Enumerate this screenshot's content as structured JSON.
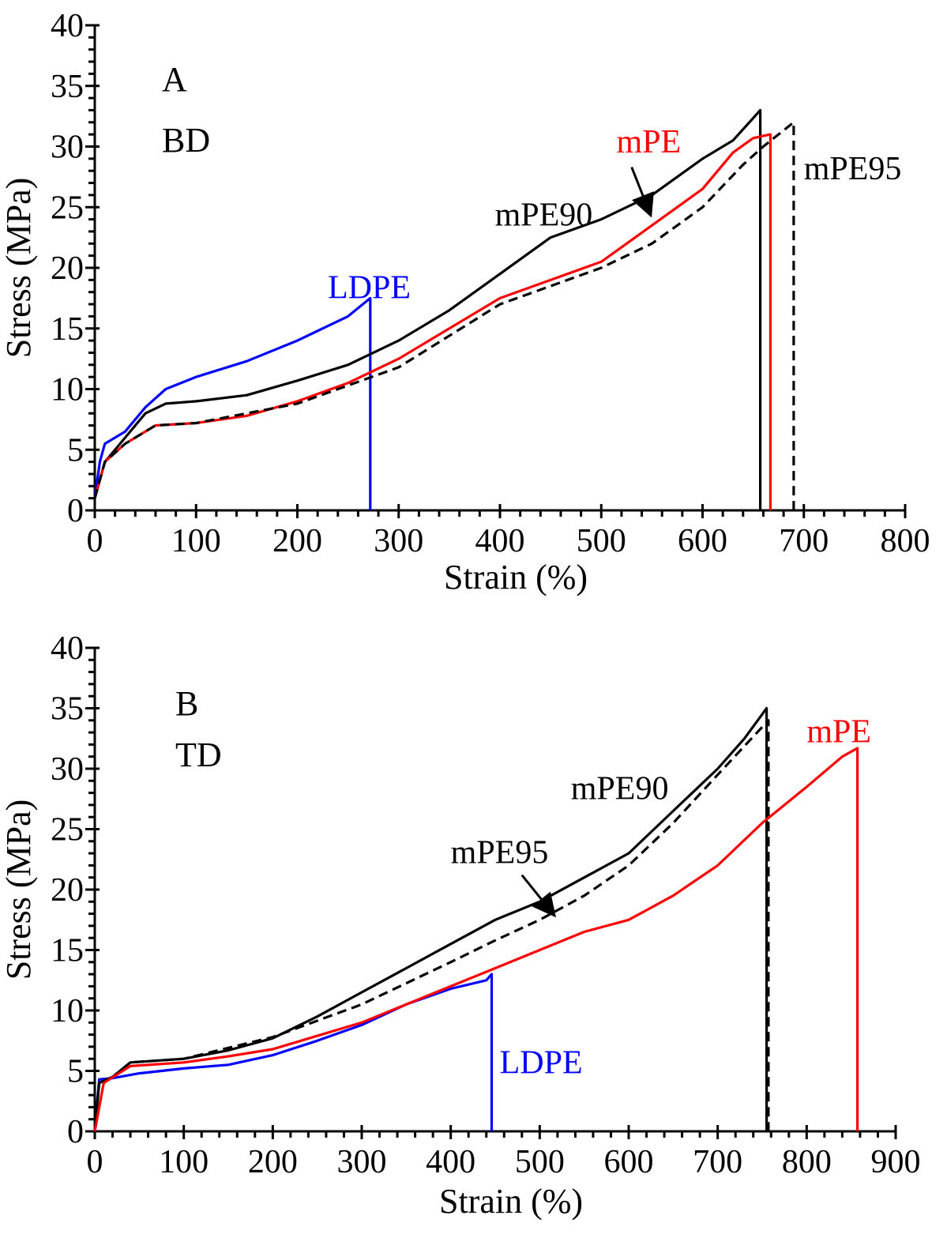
{
  "chart_data": [
    {
      "type": "line",
      "panel": "A",
      "panel_labels": [
        "A",
        "BD"
      ],
      "xlabel": "Strain (%)",
      "ylabel": "Stress (MPa)",
      "xlim": [
        0,
        800
      ],
      "ylim": [
        0,
        40
      ],
      "xticks": [
        0,
        100,
        200,
        300,
        400,
        500,
        600,
        700,
        800
      ],
      "yticks": [
        0,
        5,
        10,
        15,
        20,
        25,
        30,
        35,
        40
      ],
      "grid": false,
      "series": [
        {
          "name": "LDPE",
          "color": "#0000ff",
          "dash": false,
          "label_pos": [
            230,
            17.5
          ],
          "x": [
            0,
            5,
            10,
            30,
            50,
            70,
            100,
            150,
            200,
            250,
            272,
            272
          ],
          "y": [
            1,
            4,
            5.5,
            6.5,
            8.5,
            10,
            11,
            12.3,
            14,
            16,
            17.5,
            0
          ]
        },
        {
          "name": "mPE90",
          "color": "#000000",
          "dash": false,
          "label_pos": [
            395,
            23.5
          ],
          "x": [
            0,
            10,
            30,
            50,
            70,
            100,
            150,
            200,
            250,
            300,
            350,
            400,
            450,
            500,
            550,
            600,
            630,
            657,
            657
          ],
          "y": [
            1,
            4,
            6,
            8,
            8.8,
            9,
            9.5,
            10.7,
            12,
            14,
            16.5,
            19.5,
            22.5,
            24,
            26,
            29,
            30.5,
            33,
            0
          ]
        },
        {
          "name": "mPE",
          "color": "#ff0000",
          "dash": false,
          "label_pos": [
            515,
            29.5
          ],
          "x": [
            0,
            10,
            30,
            60,
            100,
            150,
            200,
            250,
            300,
            350,
            400,
            450,
            500,
            550,
            600,
            630,
            650,
            667,
            667
          ],
          "y": [
            1,
            4,
            5.5,
            7,
            7.2,
            7.8,
            9,
            10.5,
            12.5,
            15,
            17.5,
            19,
            20.5,
            23.5,
            26.5,
            29.5,
            30.7,
            31,
            0
          ]
        },
        {
          "name": "mPE95",
          "color": "#000000",
          "dash": true,
          "label_pos": [
            700,
            27.3
          ],
          "x": [
            0,
            10,
            30,
            60,
            100,
            200,
            300,
            400,
            500,
            550,
            600,
            640,
            660,
            690,
            690
          ],
          "y": [
            1,
            4,
            5.5,
            7,
            7.2,
            8.8,
            11.8,
            17,
            20,
            22,
            25,
            28.5,
            30,
            32,
            0
          ]
        }
      ],
      "arrow": {
        "from": [
          530,
          28.3
        ],
        "to": [
          548,
          24.5
        ]
      }
    },
    {
      "type": "line",
      "panel": "B",
      "panel_labels": [
        "B",
        "TD"
      ],
      "xlabel": "Strain (%)",
      "ylabel": "Stress (MPa)",
      "xlim": [
        0,
        900
      ],
      "ylim": [
        0,
        40
      ],
      "xticks": [
        0,
        100,
        200,
        300,
        400,
        500,
        600,
        700,
        800,
        900
      ],
      "yticks": [
        0,
        5,
        10,
        15,
        20,
        25,
        30,
        35,
        40
      ],
      "grid": false,
      "series": [
        {
          "name": "LDPE",
          "color": "#0000ff",
          "dash": false,
          "label_pos": [
            455,
            4.8
          ],
          "x": [
            0,
            5,
            20,
            50,
            100,
            150,
            200,
            250,
            300,
            350,
            400,
            440,
            446,
            446
          ],
          "y": [
            0,
            4.3,
            4.4,
            4.8,
            5.2,
            5.5,
            6.3,
            7.5,
            8.8,
            10.5,
            11.8,
            12.5,
            13,
            0
          ]
        },
        {
          "name": "mPE90",
          "color": "#000000",
          "dash": false,
          "label_pos": [
            535,
            27.5
          ],
          "x": [
            0,
            5,
            20,
            40,
            100,
            150,
            200,
            250,
            300,
            350,
            400,
            450,
            500,
            550,
            600,
            650,
            700,
            730,
            755,
            755
          ],
          "y": [
            0,
            4,
            4.5,
            5.7,
            6,
            6.7,
            7.7,
            9.5,
            11.5,
            13.5,
            15.5,
            17.5,
            19,
            21,
            23,
            26.5,
            30,
            32.5,
            35,
            0
          ]
        },
        {
          "name": "mPE95",
          "color": "#000000",
          "dash": true,
          "label_pos": [
            400,
            22.2
          ],
          "x": [
            0,
            5,
            20,
            40,
            100,
            200,
            300,
            400,
            450,
            500,
            550,
            600,
            650,
            700,
            757,
            757
          ],
          "y": [
            0,
            4,
            4.5,
            5.7,
            6,
            7.8,
            10.5,
            14,
            15.8,
            17.5,
            19.5,
            22,
            25.5,
            29.5,
            34,
            0
          ]
        },
        {
          "name": "mPE",
          "color": "#ff0000",
          "dash": false,
          "label_pos": [
            800,
            32.2
          ],
          "x": [
            0,
            10,
            40,
            100,
            150,
            200,
            300,
            400,
            450,
            500,
            550,
            600,
            650,
            700,
            750,
            800,
            840,
            857,
            857
          ],
          "y": [
            0,
            4,
            5.4,
            5.7,
            6.2,
            6.8,
            9,
            12,
            13.5,
            15,
            16.5,
            17.5,
            19.5,
            22,
            25.5,
            28.5,
            31,
            31.7,
            0
          ]
        }
      ],
      "arrow": {
        "from": [
          480,
          21.2
        ],
        "to": [
          515,
          18
        ]
      }
    }
  ]
}
